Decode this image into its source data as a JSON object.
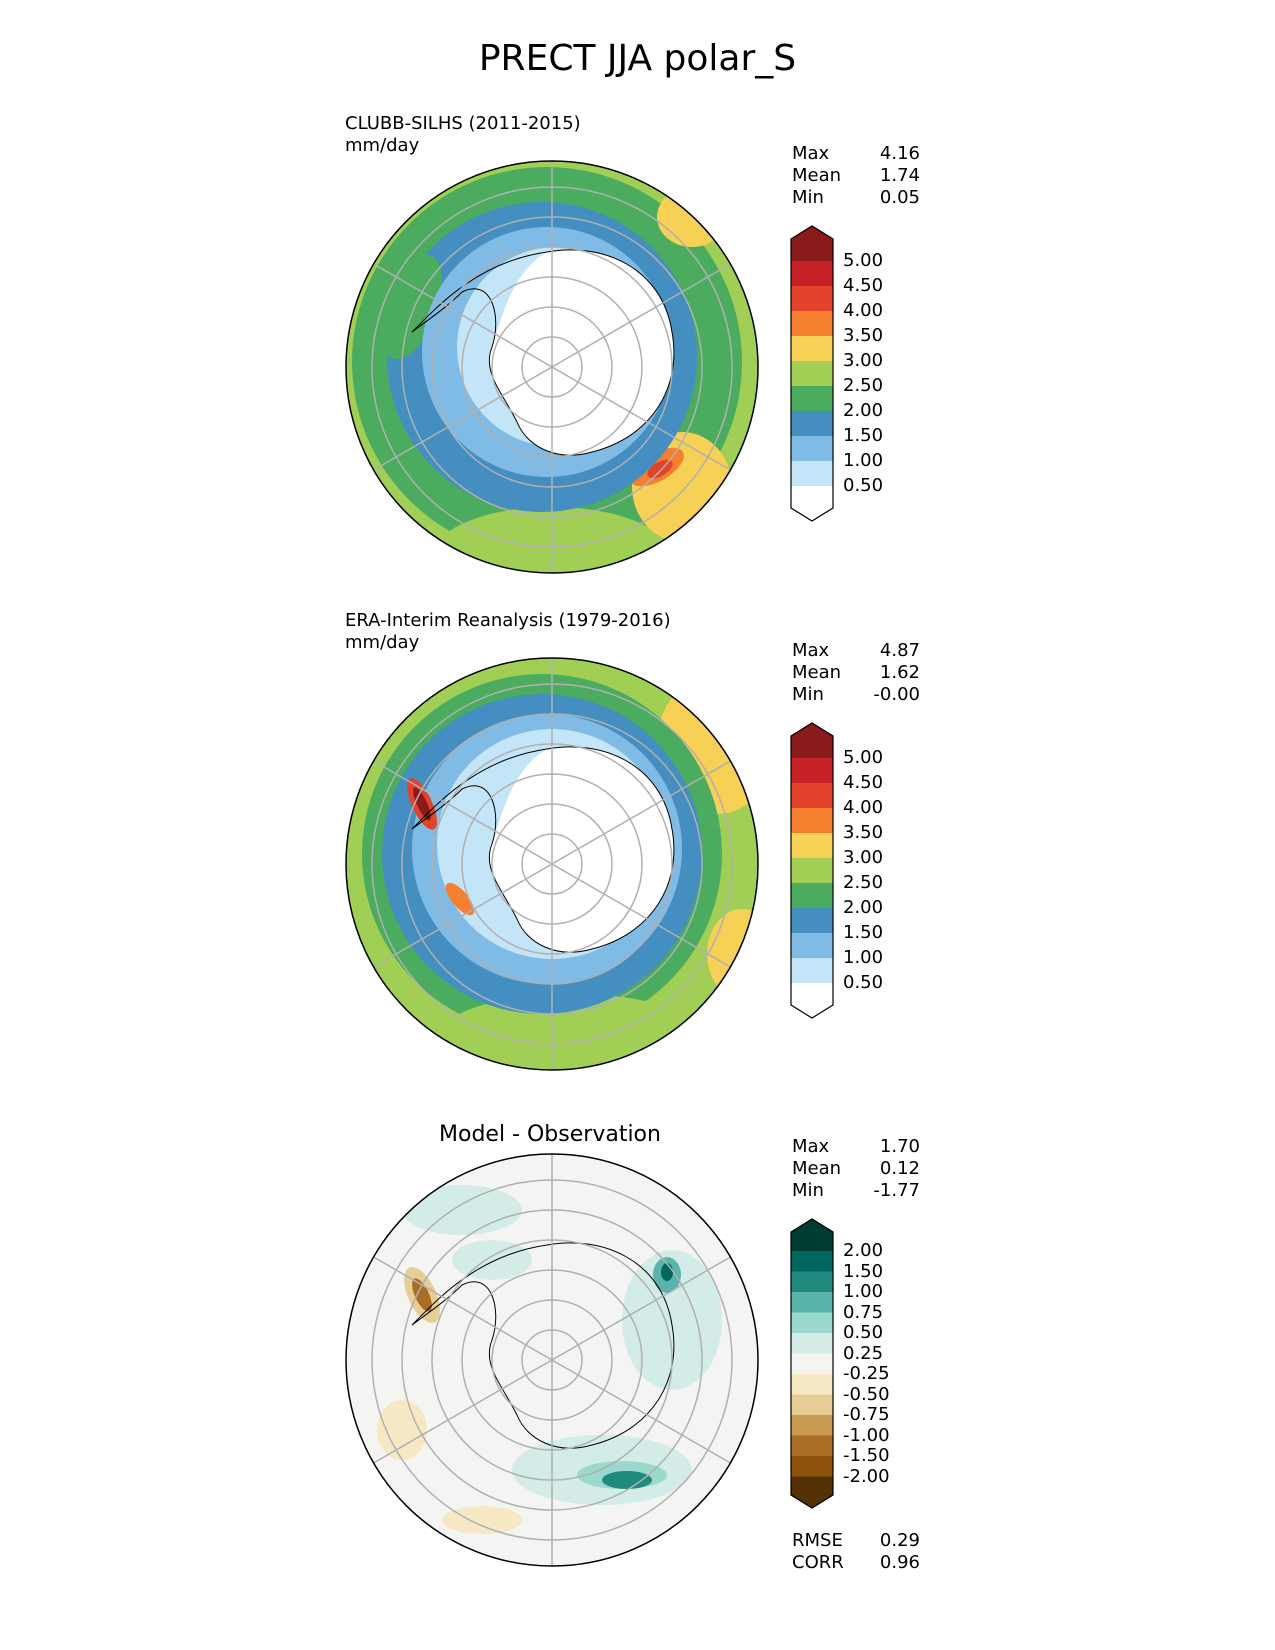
{
  "title": "PRECT JJA polar_S",
  "panels": [
    {
      "label": "CLUBB-SILHS (2011-2015)",
      "units": "mm/day",
      "stats": [
        {
          "name": "Max",
          "value": "4.16"
        },
        {
          "name": "Mean",
          "value": "1.74"
        },
        {
          "name": "Min",
          "value": "0.05"
        }
      ],
      "colorbar": {
        "labels": [
          "5.00",
          "4.50",
          "4.00",
          "3.50",
          "3.00",
          "2.50",
          "2.00",
          "1.50",
          "1.00",
          "0.50"
        ],
        "colors": [
          "#8b1a1a",
          "#c62127",
          "#e2432a",
          "#f67e2f",
          "#f7d155",
          "#a1cf55",
          "#4bab5f",
          "#448ec1",
          "#7fbbe4",
          "#c4e4f7",
          "#ffffff"
        ]
      }
    },
    {
      "label": "ERA-Interim Reanalysis (1979-2016)",
      "units": "mm/day",
      "stats": [
        {
          "name": "Max",
          "value": "4.87"
        },
        {
          "name": "Mean",
          "value": "1.62"
        },
        {
          "name": "Min",
          "value": "-0.00"
        }
      ],
      "colorbar": {
        "labels": [
          "5.00",
          "4.50",
          "4.00",
          "3.50",
          "3.00",
          "2.50",
          "2.00",
          "1.50",
          "1.00",
          "0.50"
        ],
        "colors": [
          "#8b1a1a",
          "#c62127",
          "#e2432a",
          "#f67e2f",
          "#f7d155",
          "#a1cf55",
          "#4bab5f",
          "#448ec1",
          "#7fbbe4",
          "#c4e4f7",
          "#ffffff"
        ]
      }
    },
    {
      "label": "Model - Observation",
      "stats": [
        {
          "name": "Max",
          "value": "1.70"
        },
        {
          "name": "Mean",
          "value": "0.12"
        },
        {
          "name": "Min",
          "value": "-1.77"
        }
      ],
      "metrics": [
        {
          "name": "RMSE",
          "value": "0.29"
        },
        {
          "name": "CORR",
          "value": "0.96"
        }
      ],
      "colorbar": {
        "labels": [
          "2.00",
          "1.50",
          "1.00",
          "0.75",
          "0.50",
          "0.25",
          "-0.25",
          "-0.50",
          "-0.75",
          "-1.00",
          "-1.50",
          "-2.00"
        ],
        "colors": [
          "#003c30",
          "#01665e",
          "#208a7f",
          "#5ab4ac",
          "#9bd8cd",
          "#d3ece8",
          "#f4f4f2",
          "#f6e8c3",
          "#e7cd96",
          "#c99a50",
          "#a96d23",
          "#8c510a",
          "#543005"
        ]
      }
    }
  ]
}
